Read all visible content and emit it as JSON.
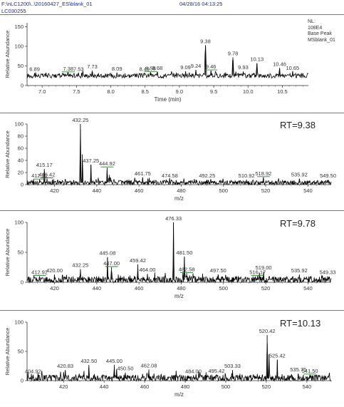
{
  "header": {
    "file_path": "F:\\nLC1200\\..\\20160427_ES\\blank_01",
    "datetime": "04/28/16 04:13:25",
    "sample_id": "LC030255",
    "nl_label": "NL:",
    "nl_value": "108E4",
    "trace_type": "Base Peak",
    "trace_file": "MSblank_01"
  },
  "colors": {
    "trace": "#000000",
    "axis": "#333333",
    "label_underline": "#2e7d32",
    "header_text": "#1a2a8a"
  },
  "chart_data": [
    {
      "type": "line",
      "name": "chromatogram",
      "xlabel": "Time (min)",
      "ylabel": "Relative Abundance",
      "xlim": [
        6.78,
        10.88
      ],
      "ylim": [
        0,
        160
      ],
      "xticks": [
        7.0,
        7.5,
        8.0,
        8.5,
        9.0,
        9.5,
        10.0,
        10.5
      ],
      "yticks": [
        0,
        50,
        100,
        150
      ],
      "baseline": 25,
      "noise": 6,
      "peaks": [
        {
          "x": 9.38,
          "y": 103
        },
        {
          "x": 9.78,
          "y": 72
        },
        {
          "x": 10.13,
          "y": 57
        },
        {
          "x": 10.46,
          "y": 45
        },
        {
          "x": 9.46,
          "y": 38
        },
        {
          "x": 9.24,
          "y": 40
        },
        {
          "x": 7.73,
          "y": 38
        },
        {
          "x": 9.09,
          "y": 36
        },
        {
          "x": 10.65,
          "y": 35
        },
        {
          "x": 9.93,
          "y": 36
        },
        {
          "x": 8.68,
          "y": 35
        },
        {
          "x": 8.58,
          "y": 34
        },
        {
          "x": 7.38,
          "y": 33
        },
        {
          "x": 8.09,
          "y": 33
        },
        {
          "x": 8.49,
          "y": 32
        },
        {
          "x": 7.53,
          "y": 32
        },
        {
          "x": 6.89,
          "y": 32
        }
      ],
      "labels": [
        {
          "x": 6.89,
          "text": "6.89"
        },
        {
          "x": 7.38,
          "text": "7.38",
          "ul": true
        },
        {
          "x": 7.53,
          "text": "7.53"
        },
        {
          "x": 7.73,
          "text": "7.73"
        },
        {
          "x": 8.09,
          "text": "8.09"
        },
        {
          "x": 8.49,
          "text": "8.49"
        },
        {
          "x": 8.58,
          "text": "8.58",
          "ul": true
        },
        {
          "x": 8.68,
          "text": "8.68"
        },
        {
          "x": 9.09,
          "text": "9.09"
        },
        {
          "x": 9.24,
          "text": "9.24"
        },
        {
          "x": 9.38,
          "text": "9.38"
        },
        {
          "x": 9.46,
          "text": "9.46",
          "ul": true
        },
        {
          "x": 9.78,
          "text": "9.78"
        },
        {
          "x": 9.93,
          "text": "9.93"
        },
        {
          "x": 10.13,
          "text": "10.13"
        },
        {
          "x": 10.46,
          "text": "10.46"
        },
        {
          "x": 10.65,
          "text": "10.65"
        }
      ]
    },
    {
      "type": "line",
      "name": "spectrum",
      "rt_label": "RT=9.38",
      "xlabel": "m/z",
      "ylabel": "Relative Abundance",
      "xlim": [
        407,
        551
      ],
      "ylim": [
        0,
        100
      ],
      "xticks": [
        420,
        440,
        460,
        480,
        500,
        520,
        540
      ],
      "yticks": [
        0,
        20,
        40,
        60,
        80,
        100
      ],
      "baseline": 3,
      "noise": 4,
      "peaks": [
        {
          "x": 432.25,
          "y": 100
        },
        {
          "x": 433.2,
          "y": 50
        },
        {
          "x": 437.25,
          "y": 33
        },
        {
          "x": 444.92,
          "y": 28
        },
        {
          "x": 415.17,
          "y": 26
        },
        {
          "x": 446.0,
          "y": 16
        },
        {
          "x": 461.75,
          "y": 12
        },
        {
          "x": 416.42,
          "y": 10
        },
        {
          "x": 412.92,
          "y": 8
        },
        {
          "x": 474.58,
          "y": 8
        },
        {
          "x": 492.25,
          "y": 8
        },
        {
          "x": 510.92,
          "y": 8
        },
        {
          "x": 518.92,
          "y": 12
        },
        {
          "x": 535.92,
          "y": 10
        },
        {
          "x": 549.5,
          "y": 8
        }
      ],
      "labels": [
        {
          "x": 412.92,
          "text": "412.92",
          "ul": true
        },
        {
          "x": 415.17,
          "text": "415.17"
        },
        {
          "x": 416.42,
          "text": "416.42",
          "ul": true
        },
        {
          "x": 432.25,
          "text": "432.25"
        },
        {
          "x": 437.25,
          "text": "437.25"
        },
        {
          "x": 444.92,
          "text": "444.92",
          "ul": true
        },
        {
          "x": 461.75,
          "text": "461.75"
        },
        {
          "x": 474.58,
          "text": "474.58"
        },
        {
          "x": 492.25,
          "text": "492.25"
        },
        {
          "x": 510.92,
          "text": "510.92"
        },
        {
          "x": 518.92,
          "text": "518.92",
          "ul": true
        },
        {
          "x": 535.92,
          "text": "535.92"
        },
        {
          "x": 549.5,
          "text": "549.50"
        }
      ]
    },
    {
      "type": "line",
      "name": "spectrum",
      "rt_label": "RT=9.78",
      "xlabel": "m/z",
      "ylabel": "Relative Abundance",
      "xlim": [
        407,
        551
      ],
      "ylim": [
        0,
        100
      ],
      "xticks": [
        420,
        440,
        460,
        480,
        500,
        520,
        540
      ],
      "yticks": [
        0,
        50,
        100
      ],
      "baseline": 4,
      "noise": 6,
      "peaks": [
        {
          "x": 476.33,
          "y": 100
        },
        {
          "x": 481.5,
          "y": 43
        },
        {
          "x": 445.08,
          "y": 42
        },
        {
          "x": 459.42,
          "y": 30
        },
        {
          "x": 432.25,
          "y": 22
        },
        {
          "x": 447.0,
          "y": 25
        },
        {
          "x": 464.0,
          "y": 14
        },
        {
          "x": 482.58,
          "y": 15
        },
        {
          "x": 519.0,
          "y": 18
        },
        {
          "x": 420.0,
          "y": 13
        },
        {
          "x": 497.5,
          "y": 13
        },
        {
          "x": 412.92,
          "y": 10
        },
        {
          "x": 516.17,
          "y": 10
        },
        {
          "x": 535.92,
          "y": 13
        },
        {
          "x": 549.33,
          "y": 10
        }
      ],
      "labels": [
        {
          "x": 412.92,
          "text": "412.92",
          "ul": true
        },
        {
          "x": 420.0,
          "text": "420.00"
        },
        {
          "x": 432.25,
          "text": "432.25"
        },
        {
          "x": 445.08,
          "text": "445.08"
        },
        {
          "x": 447.0,
          "text": "447.00",
          "ul": true
        },
        {
          "x": 459.42,
          "text": "459.42"
        },
        {
          "x": 464.0,
          "text": "464.00"
        },
        {
          "x": 476.33,
          "text": "476.33"
        },
        {
          "x": 481.5,
          "text": "481.50"
        },
        {
          "x": 482.58,
          "text": "482.58",
          "ul": true
        },
        {
          "x": 497.5,
          "text": "497.50"
        },
        {
          "x": 516.17,
          "text": "516.17",
          "ul": true
        },
        {
          "x": 519.0,
          "text": "519.00"
        },
        {
          "x": 535.92,
          "text": "535.92"
        },
        {
          "x": 549.33,
          "text": "549.33"
        }
      ]
    },
    {
      "type": "line",
      "name": "spectrum",
      "rt_label": "RT=10.13",
      "xlabel": "m/z",
      "ylabel": "Relative Abundance",
      "xlim": [
        402,
        552
      ],
      "ylim": [
        0,
        100
      ],
      "xticks": [
        420,
        440,
        460,
        480,
        500,
        520,
        540
      ],
      "yticks": [
        0,
        50,
        100
      ],
      "baseline": 4,
      "noise": 6,
      "peaks": [
        {
          "x": 520.42,
          "y": 78
        },
        {
          "x": 525.42,
          "y": 36
        },
        {
          "x": 521.3,
          "y": 45
        },
        {
          "x": 432.5,
          "y": 27
        },
        {
          "x": 445.0,
          "y": 27
        },
        {
          "x": 446.2,
          "y": 20
        },
        {
          "x": 450.5,
          "y": 14
        },
        {
          "x": 462.08,
          "y": 19
        },
        {
          "x": 503.33,
          "y": 18
        },
        {
          "x": 420.83,
          "y": 18
        },
        {
          "x": 535.75,
          "y": 12
        },
        {
          "x": 495.42,
          "y": 10
        },
        {
          "x": 484.0,
          "y": 9
        },
        {
          "x": 404.92,
          "y": 9
        },
        {
          "x": 541.5,
          "y": 10
        }
      ],
      "labels": [
        {
          "x": 404.92,
          "text": "404.92"
        },
        {
          "x": 420.83,
          "text": "420.83"
        },
        {
          "x": 432.5,
          "text": "432.50"
        },
        {
          "x": 445.0,
          "text": "445.00"
        },
        {
          "x": 450.5,
          "text": "450.50"
        },
        {
          "x": 462.08,
          "text": "462.08"
        },
        {
          "x": 484.0,
          "text": "484.00"
        },
        {
          "x": 495.42,
          "text": "495.42"
        },
        {
          "x": 503.33,
          "text": "503.33"
        },
        {
          "x": 520.42,
          "text": "520.42"
        },
        {
          "x": 525.42,
          "text": "525.42"
        },
        {
          "x": 535.75,
          "text": "535.75"
        },
        {
          "x": 541.5,
          "text": "541.50",
          "ul": true
        }
      ]
    }
  ]
}
